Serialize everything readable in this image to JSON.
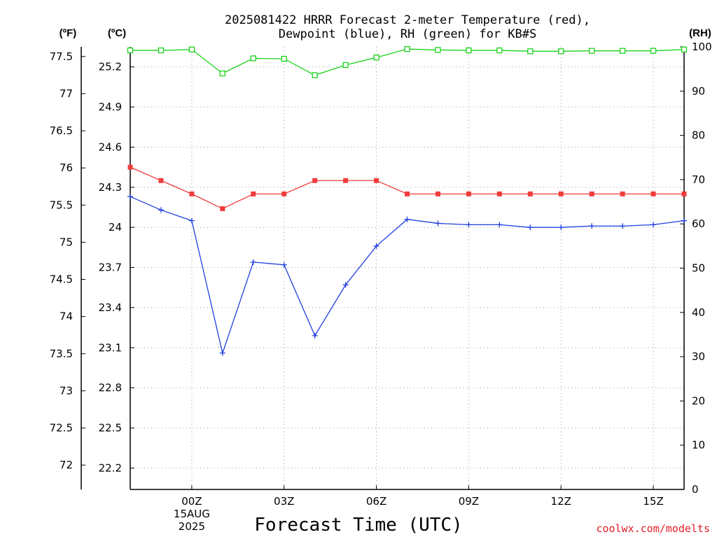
{
  "colors": {
    "temp": "#f03c3c",
    "dewpoint": "#1f3fe0",
    "rh": "#19d219",
    "grid": "#a0a0a0"
  },
  "chart_data": {
    "type": "line",
    "title_line1": "2025081422 HRRR Forecast 2-meter Temperature (red),",
    "title_line2": "Dewpoint (blue), RH (green) for KB#S",
    "xlabel": "Forecast Time (UTC)",
    "credit": "coolwx.com/modelts",
    "unit_left_f": "(ºF)",
    "unit_left_c": "(ºC)",
    "unit_right": "(RH)",
    "x_hours": [
      -2,
      -1,
      0,
      1,
      2,
      3,
      4,
      5,
      6,
      7,
      8,
      9,
      10,
      11,
      12,
      13,
      14,
      15,
      16
    ],
    "xlim": [
      -2,
      16
    ],
    "x_ticks": [
      {
        "hour": 0,
        "lines": [
          "00Z",
          "15AUG",
          "2025"
        ]
      },
      {
        "hour": 3,
        "lines": [
          "03Z"
        ]
      },
      {
        "hour": 6,
        "lines": [
          "06Z"
        ]
      },
      {
        "hour": 9,
        "lines": [
          "09Z"
        ]
      },
      {
        "hour": 12,
        "lines": [
          "12Z"
        ]
      },
      {
        "hour": 15,
        "lines": [
          "15Z"
        ]
      }
    ],
    "celsius_axis": {
      "ylim": [
        22.04,
        25.35
      ],
      "ticks": [
        "22.2",
        "22.5",
        "22.8",
        "23.1",
        "23.4",
        "23.7",
        "24",
        "24.3",
        "24.6",
        "24.9",
        "25.2"
      ]
    },
    "fahrenheit_ticks": [
      "72",
      "72.5",
      "73",
      "73.5",
      "74",
      "74.5",
      "75",
      "75.5",
      "76",
      "76.5",
      "77",
      "77.5"
    ],
    "rh_axis": {
      "ylim": [
        0,
        100
      ],
      "ticks": [
        "0",
        "10",
        "20",
        "30",
        "40",
        "50",
        "60",
        "70",
        "80",
        "90",
        "100"
      ]
    },
    "series": [
      {
        "name": "Temperature",
        "axis": "C",
        "marker": "filled-square",
        "values": [
          24.45,
          24.35,
          24.25,
          24.14,
          24.25,
          24.25,
          24.35,
          24.35,
          24.35,
          24.25,
          24.25,
          24.25,
          24.25,
          24.25,
          24.25,
          24.25,
          24.25,
          24.25,
          24.25
        ]
      },
      {
        "name": "Dewpoint",
        "axis": "C",
        "marker": "plus",
        "values": [
          24.23,
          24.13,
          24.05,
          23.06,
          23.74,
          23.72,
          23.19,
          23.57,
          23.86,
          24.06,
          24.03,
          24.02,
          24.02,
          24.0,
          24.0,
          24.01,
          24.01,
          24.02,
          24.05
        ]
      },
      {
        "name": "RH",
        "axis": "RH",
        "marker": "open-square",
        "values": [
          99.2,
          99.2,
          99.4,
          94.0,
          97.4,
          97.3,
          93.6,
          95.9,
          97.6,
          99.5,
          99.3,
          99.2,
          99.2,
          99.0,
          99.0,
          99.1,
          99.1,
          99.1,
          99.4
        ]
      }
    ]
  }
}
